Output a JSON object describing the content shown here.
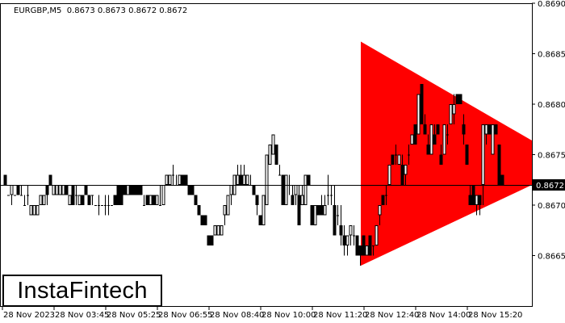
{
  "header": {
    "symbol_info": "EURGBP,M5  0.8673 0.8673 0.8672 0.8672"
  },
  "logo": {
    "text": "InstaFintech"
  },
  "chart_data": {
    "type": "candlestick",
    "symbol": "EURGBP",
    "timeframe": "M5",
    "ohlc_header": [
      0.8673,
      0.8673,
      0.8672,
      0.8672
    ],
    "current_price": "0.8672",
    "ylim": [
      0.866,
      0.869
    ],
    "y_ticks": [
      "0.8690",
      "0.8685",
      "0.8680",
      "0.8675",
      "0.8670",
      "0.8665"
    ],
    "x_ticks": [
      "28 Nov 2023",
      "28 Nov 03:45",
      "28 Nov 05:25",
      "28 Nov 06:55",
      "28 Nov 08:40",
      "28 Nov 10:00",
      "28 Nov 11:20",
      "28 Nov 12:40",
      "28 Nov 14:00",
      "28 Nov 15:20"
    ],
    "grid": false,
    "colors": {
      "pattern": "#ff0000",
      "bear": "#000000",
      "bull": "#ffffff",
      "outline": "#000000"
    },
    "pattern": {
      "type": "symmetrical-triangle",
      "top_left": 0.86862,
      "bottom_left": 0.8664,
      "top_right": 0.86764,
      "bottom_right": 0.8672
    },
    "candles": [
      [
        0.8673,
        0.8673,
        0.8672,
        0.8672
      ],
      [
        0.8671,
        0.8671,
        0.8671,
        0.8671
      ],
      [
        0.8671,
        0.8672,
        0.867,
        0.8672
      ],
      [
        0.8671,
        0.8671,
        0.8671,
        0.8671
      ],
      [
        0.8672,
        0.8672,
        0.8671,
        0.8671
      ],
      [
        0.8671,
        0.8672,
        0.8671,
        0.8671
      ],
      [
        0.867,
        0.8671,
        0.867,
        0.867
      ],
      [
        0.8671,
        0.8672,
        0.867,
        0.8671
      ],
      [
        0.8669,
        0.867,
        0.8669,
        0.867
      ],
      [
        0.8669,
        0.867,
        0.8669,
        0.867
      ],
      [
        0.8669,
        0.867,
        0.8669,
        0.867
      ],
      [
        0.867,
        0.8671,
        0.867,
        0.8671
      ],
      [
        0.867,
        0.8671,
        0.867,
        0.8671
      ],
      [
        0.8672,
        0.8672,
        0.867,
        0.8671
      ],
      [
        0.8673,
        0.8673,
        0.8672,
        0.8672
      ],
      [
        0.8671,
        0.8672,
        0.8671,
        0.8672
      ],
      [
        0.8671,
        0.8672,
        0.8671,
        0.8672
      ],
      [
        0.8671,
        0.8672,
        0.8671,
        0.8672
      ],
      [
        0.8671,
        0.8672,
        0.8671,
        0.8672
      ],
      [
        0.8672,
        0.8672,
        0.8671,
        0.8671
      ],
      [
        0.867,
        0.8671,
        0.867,
        0.8671
      ],
      [
        0.8672,
        0.8672,
        0.867,
        0.867
      ],
      [
        0.8671,
        0.8672,
        0.867,
        0.8671
      ],
      [
        0.867,
        0.8671,
        0.867,
        0.8671
      ],
      [
        0.8671,
        0.8671,
        0.867,
        0.867
      ],
      [
        0.8672,
        0.8672,
        0.8671,
        0.8671
      ],
      [
        0.8671,
        0.8671,
        0.867,
        0.867
      ],
      [
        0.8671,
        0.8671,
        0.867,
        0.8671
      ],
      [
        0.867,
        0.867,
        0.867,
        0.867
      ],
      [
        0.867,
        0.8671,
        0.8669,
        0.867
      ],
      [
        0.867,
        0.867,
        0.867,
        0.867
      ],
      [
        0.867,
        0.8671,
        0.8669,
        0.867
      ],
      [
        0.867,
        0.8671,
        0.8669,
        0.867
      ],
      [
        0.867,
        0.867,
        0.867,
        0.867
      ],
      [
        0.8671,
        0.8671,
        0.867,
        0.867
      ],
      [
        0.8672,
        0.8672,
        0.867,
        0.867
      ],
      [
        0.8672,
        0.8672,
        0.867,
        0.867
      ],
      [
        0.8672,
        0.8672,
        0.8671,
        0.8671
      ],
      [
        0.8671,
        0.8672,
        0.8671,
        0.8672
      ],
      [
        0.8672,
        0.8672,
        0.8671,
        0.8671
      ],
      [
        0.8672,
        0.8672,
        0.8671,
        0.8671
      ],
      [
        0.8672,
        0.8672,
        0.8671,
        0.8671
      ],
      [
        0.8672,
        0.8672,
        0.8671,
        0.8671
      ],
      [
        0.867,
        0.8671,
        0.867,
        0.867
      ],
      [
        0.8671,
        0.8671,
        0.867,
        0.867
      ],
      [
        0.867,
        0.8671,
        0.867,
        0.8671
      ],
      [
        0.8671,
        0.8671,
        0.867,
        0.867
      ],
      [
        0.867,
        0.8671,
        0.867,
        0.8671
      ],
      [
        0.867,
        0.8672,
        0.867,
        0.867
      ],
      [
        0.867,
        0.8672,
        0.867,
        0.8672
      ],
      [
        0.8672,
        0.8673,
        0.8672,
        0.8673
      ],
      [
        0.8672,
        0.8673,
        0.8672,
        0.8673
      ],
      [
        0.8673,
        0.8674,
        0.8672,
        0.8673
      ],
      [
        0.8672,
        0.8673,
        0.8672,
        0.8672
      ],
      [
        0.8672,
        0.8673,
        0.8672,
        0.8673
      ],
      [
        0.8673,
        0.8673,
        0.8672,
        0.8672
      ],
      [
        0.8673,
        0.8673,
        0.8672,
        0.8672
      ],
      [
        0.8672,
        0.8672,
        0.8671,
        0.8671
      ],
      [
        0.8672,
        0.8672,
        0.8671,
        0.8671
      ],
      [
        0.8671,
        0.8671,
        0.867,
        0.867
      ],
      [
        0.867,
        0.867,
        0.8669,
        0.8669
      ],
      [
        0.8669,
        0.8669,
        0.8668,
        0.8668
      ],
      [
        0.8669,
        0.8669,
        0.8668,
        0.8668
      ],
      [
        0.8667,
        0.8667,
        0.8666,
        0.8666
      ],
      [
        0.8667,
        0.8667,
        0.8666,
        0.8666
      ],
      [
        0.8667,
        0.8668,
        0.8667,
        0.8668
      ],
      [
        0.8667,
        0.8668,
        0.8667,
        0.8668
      ],
      [
        0.8667,
        0.8668,
        0.8667,
        0.8668
      ],
      [
        0.8669,
        0.867,
        0.8668,
        0.867
      ],
      [
        0.8669,
        0.8671,
        0.8669,
        0.8671
      ],
      [
        0.8671,
        0.8672,
        0.867,
        0.8672
      ],
      [
        0.8671,
        0.8673,
        0.8671,
        0.8673
      ],
      [
        0.8672,
        0.8674,
        0.8672,
        0.8673
      ],
      [
        0.8673,
        0.8674,
        0.8672,
        0.8672
      ],
      [
        0.8672,
        0.8674,
        0.8672,
        0.8673
      ],
      [
        0.8672,
        0.8673,
        0.8672,
        0.8673
      ],
      [
        0.8672,
        0.8673,
        0.8672,
        0.8672
      ],
      [
        0.8672,
        0.8672,
        0.8671,
        0.8671
      ],
      [
        0.8671,
        0.8671,
        0.8669,
        0.867
      ],
      [
        0.8669,
        0.8669,
        0.8668,
        0.8668
      ],
      [
        0.8668,
        0.8671,
        0.8668,
        0.8671
      ],
      [
        0.867,
        0.8675,
        0.867,
        0.8675
      ],
      [
        0.8674,
        0.8676,
        0.8674,
        0.8676
      ],
      [
        0.8675,
        0.8677,
        0.8675,
        0.8677
      ],
      [
        0.8676,
        0.8676,
        0.8674,
        0.8674
      ],
      [
        0.8673,
        0.8674,
        0.8673,
        0.8673
      ],
      [
        0.8673,
        0.8673,
        0.867,
        0.867
      ],
      [
        0.867,
        0.8673,
        0.867,
        0.8673
      ],
      [
        0.8672,
        0.8673,
        0.8671,
        0.8672
      ],
      [
        0.8671,
        0.8672,
        0.867,
        0.867
      ],
      [
        0.8671,
        0.8672,
        0.867,
        0.8672
      ],
      [
        0.8671,
        0.8672,
        0.8668,
        0.8668
      ],
      [
        0.867,
        0.8672,
        0.867,
        0.8671
      ],
      [
        0.867,
        0.8673,
        0.867,
        0.8673
      ],
      [
        0.8673,
        0.8673,
        0.8672,
        0.8672
      ],
      [
        0.867,
        0.867,
        0.8668,
        0.8668
      ],
      [
        0.8668,
        0.867,
        0.8668,
        0.867
      ],
      [
        0.867,
        0.867,
        0.8669,
        0.8669
      ],
      [
        0.867,
        0.8671,
        0.8669,
        0.8669
      ],
      [
        0.8669,
        0.8671,
        0.8669,
        0.867
      ],
      [
        0.8671,
        0.8673,
        0.867,
        0.8671
      ],
      [
        0.8671,
        0.8672,
        0.867,
        0.8671
      ],
      [
        0.867,
        0.8672,
        0.8667,
        0.8667
      ],
      [
        0.8669,
        0.867,
        0.8668,
        0.8669
      ],
      [
        0.8668,
        0.867,
        0.8666,
        0.8667
      ],
      [
        0.8667,
        0.8668,
        0.8665,
        0.8666
      ],
      [
        0.8666,
        0.8667,
        0.8665,
        0.8667
      ],
      [
        0.8667,
        0.8668,
        0.8666,
        0.8668
      ],
      [
        0.8667,
        0.8668,
        0.8666,
        0.8667
      ],
      [
        0.8667,
        0.8667,
        0.8665,
        0.8665
      ],
      [
        0.8666,
        0.8666,
        0.8664,
        0.8665
      ],
      [
        0.8667,
        0.8667,
        0.8665,
        0.8665
      ],
      [
        0.8665,
        0.8666,
        0.8665,
        0.8666
      ],
      [
        0.8667,
        0.8667,
        0.8665,
        0.8665
      ],
      [
        0.8666,
        0.8666,
        0.8665,
        0.8666
      ],
      [
        0.8666,
        0.8668,
        0.8666,
        0.8668
      ],
      [
        0.8669,
        0.867,
        0.8668,
        0.867
      ],
      [
        0.8671,
        0.8671,
        0.867,
        0.867
      ],
      [
        0.8671,
        0.8672,
        0.867,
        0.8671
      ],
      [
        0.8672,
        0.8674,
        0.8672,
        0.8674
      ],
      [
        0.8675,
        0.8675,
        0.8674,
        0.8674
      ],
      [
        0.8675,
        0.8676,
        0.8674,
        0.8675
      ],
      [
        0.8674,
        0.8675,
        0.8674,
        0.8675
      ],
      [
        0.8674,
        0.8675,
        0.8672,
        0.8672
      ],
      [
        0.8673,
        0.8674,
        0.8672,
        0.8674
      ],
      [
        0.8675,
        0.8676,
        0.8674,
        0.8675
      ],
      [
        0.8676,
        0.8677,
        0.8676,
        0.8677
      ],
      [
        0.8678,
        0.8678,
        0.8676,
        0.8676
      ],
      [
        0.8677,
        0.8681,
        0.8677,
        0.8681
      ],
      [
        0.8682,
        0.8682,
        0.8678,
        0.8678
      ],
      [
        0.8678,
        0.8679,
        0.8677,
        0.8677
      ],
      [
        0.8676,
        0.8677,
        0.8675,
        0.8675
      ],
      [
        0.8675,
        0.8678,
        0.8675,
        0.8678
      ],
      [
        0.8677,
        0.8678,
        0.8676,
        0.8676
      ],
      [
        0.8678,
        0.8678,
        0.8677,
        0.8677
      ],
      [
        0.8675,
        0.8676,
        0.8674,
        0.8674
      ],
      [
        0.8675,
        0.8678,
        0.8675,
        0.8678
      ],
      [
        0.8677,
        0.8678,
        0.8676,
        0.8677
      ],
      [
        0.8678,
        0.868,
        0.8678,
        0.868
      ],
      [
        0.8679,
        0.8681,
        0.8678,
        0.868
      ],
      [
        0.8681,
        0.8681,
        0.868,
        0.868
      ],
      [
        0.8681,
        0.8681,
        0.868,
        0.868
      ],
      [
        0.8678,
        0.8679,
        0.8676,
        0.8677
      ],
      [
        0.8676,
        0.8676,
        0.8674,
        0.8674
      ],
      [
        0.8671,
        0.8672,
        0.867,
        0.867
      ],
      [
        0.8672,
        0.8672,
        0.867,
        0.867
      ],
      [
        0.867,
        0.8671,
        0.8669,
        0.8671
      ],
      [
        0.8671,
        0.8671,
        0.8669,
        0.867
      ],
      [
        0.8672,
        0.8678,
        0.867,
        0.8678
      ],
      [
        0.8677,
        0.8678,
        0.8676,
        0.8678
      ],
      [
        0.8678,
        0.8678,
        0.8677,
        0.8677
      ],
      [
        0.8675,
        0.8678,
        0.8675,
        0.8678
      ],
      [
        0.8678,
        0.8678,
        0.8677,
        0.8677
      ],
      [
        0.8676,
        0.8676,
        0.8672,
        0.8672
      ],
      [
        0.8673,
        0.8673,
        0.8672,
        0.8672
      ]
    ]
  }
}
